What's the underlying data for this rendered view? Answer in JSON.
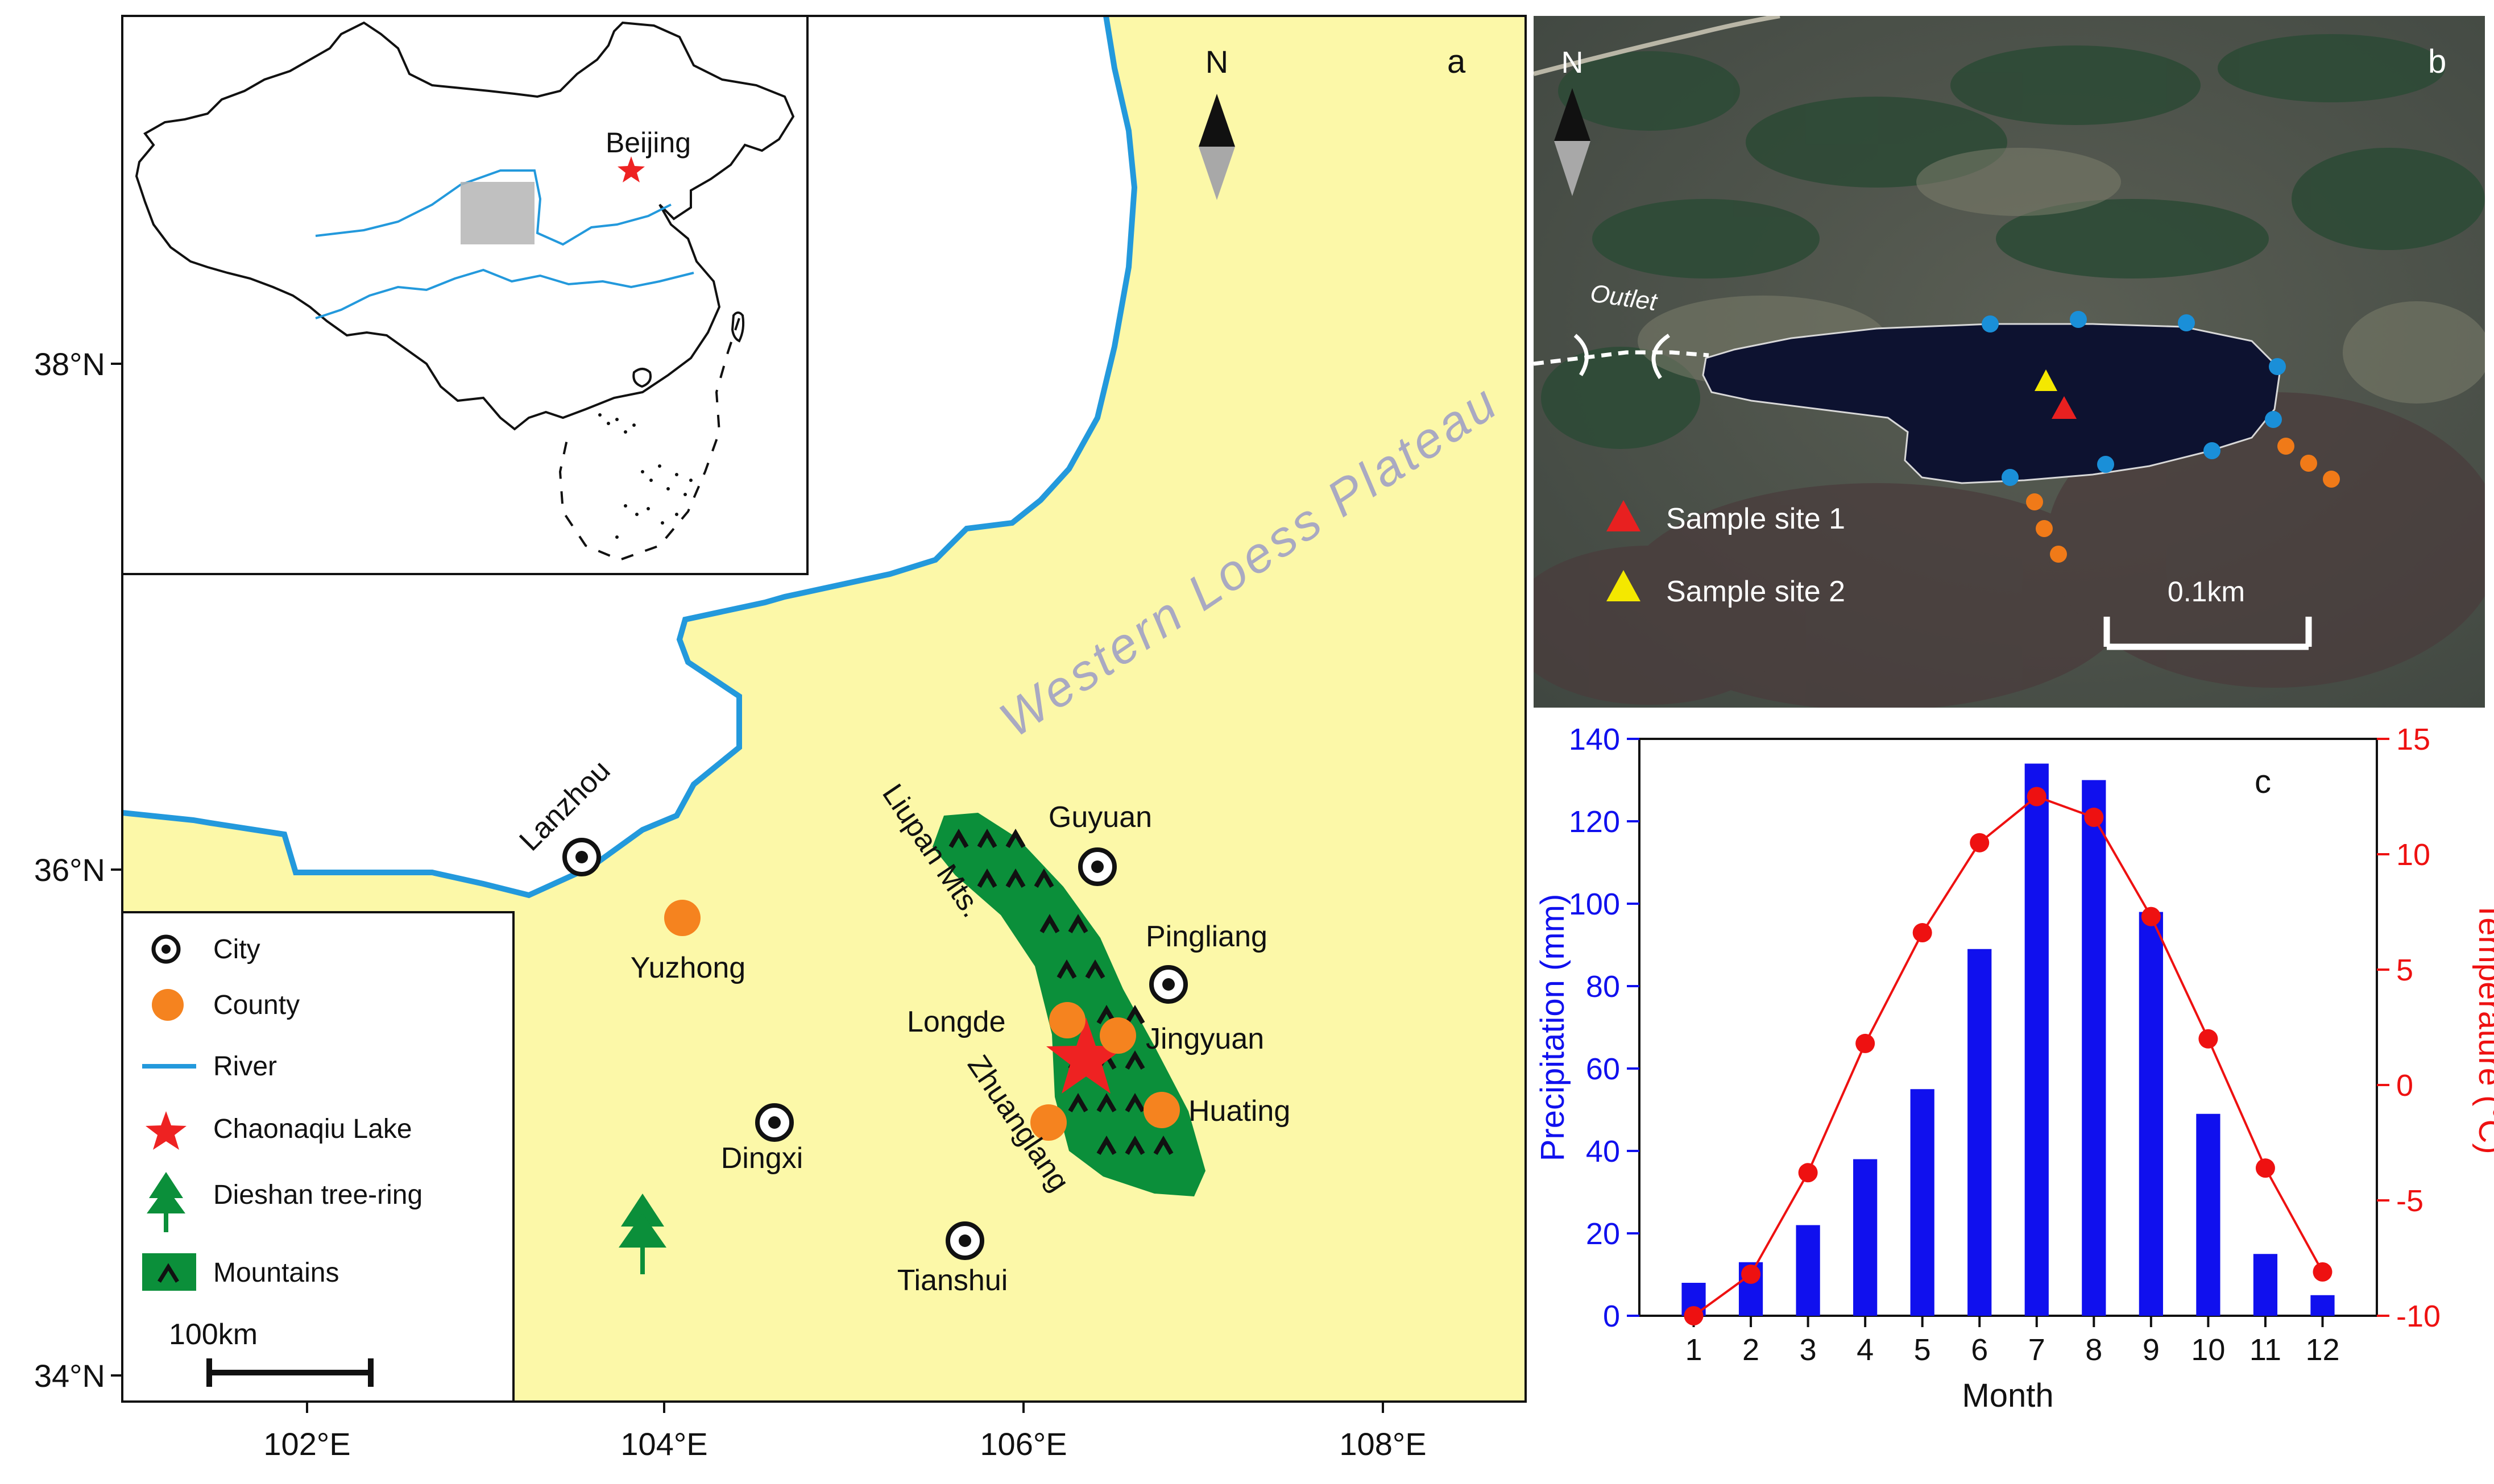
{
  "colors": {
    "plateau": "#fcf8a8",
    "river": "#2399dc",
    "mountains": "#0b8f3a",
    "city_marker": "#111111",
    "county": "#f5831f",
    "lake_star": "#ee2222",
    "precip_bar": "#1010ee",
    "temperature_line": "#ee1111",
    "satellite_bg": "#52564a",
    "lake": "#0d1230",
    "shore_point": "#1a8fd8",
    "stream_point": "#f07a18",
    "site1": "#e82020",
    "site2": "#f4e800"
  },
  "panel_a": {
    "label": "a",
    "north": "N",
    "plateau_label": "Western  Loess  Plateau",
    "lat_ticks": [
      "38°N",
      "36°N",
      "34°N"
    ],
    "lon_ticks": [
      "102°E",
      "104°E",
      "106°E",
      "108°E"
    ],
    "inset_capital": "Beijing",
    "mountains_label": "Liupan Mts.",
    "cities": [
      {
        "name": "Lanzhou",
        "type": "city"
      },
      {
        "name": "Guyuan",
        "type": "city"
      },
      {
        "name": "Pingliang",
        "type": "city"
      },
      {
        "name": "Dingxi",
        "type": "city"
      },
      {
        "name": "Tianshui",
        "type": "city"
      },
      {
        "name": "Yuzhong",
        "type": "county"
      },
      {
        "name": "Longde",
        "type": "county"
      },
      {
        "name": "Jingyuan",
        "type": "county"
      },
      {
        "name": "Huating",
        "type": "county"
      },
      {
        "name": "Zhuanglang",
        "type": "county"
      }
    ],
    "legend": [
      {
        "label": "City",
        "icon": "city-icon"
      },
      {
        "label": "County",
        "icon": "county-dot-icon"
      },
      {
        "label": "River",
        "icon": "river-line-icon"
      },
      {
        "label": "Chaonaqiu Lake",
        "icon": "star-icon"
      },
      {
        "label": "Dieshan tree-ring",
        "icon": "tree-icon"
      },
      {
        "label": "Mountains",
        "icon": "mountain-icon"
      }
    ],
    "scale_label": "100km"
  },
  "panel_b": {
    "label": "b",
    "north": "N",
    "outlet_label": "Outlet",
    "legend": [
      {
        "label": "Sample site 1",
        "icon": "red-triangle-icon"
      },
      {
        "label": "Sample site 2",
        "icon": "yellow-triangle-icon"
      }
    ],
    "scale_label": "0.1km"
  },
  "panel_c": {
    "label": "c",
    "chart_data": {
      "type": "bar",
      "categories": [
        "1",
        "2",
        "3",
        "4",
        "5",
        "6",
        "7",
        "8",
        "9",
        "10",
        "11",
        "12"
      ],
      "series": [
        {
          "type": "bar",
          "axis": "left",
          "values": [
            8,
            13,
            22,
            38,
            55,
            89,
            134,
            130,
            98,
            49,
            15,
            5
          ]
        },
        {
          "type": "line",
          "axis": "right",
          "values": [
            -10,
            -8.2,
            -3.8,
            1.8,
            6.6,
            10.5,
            12.5,
            11.6,
            7.3,
            2.0,
            -3.6,
            -8.1
          ]
        }
      ],
      "xlabel": "Month",
      "ylabel": "Precipitation (mm)",
      "y2label": "Temperature (°C)",
      "ylim": [
        0,
        140
      ],
      "y2lim": [
        -10,
        15
      ],
      "yticks": [
        "0",
        "20",
        "40",
        "60",
        "80",
        "100",
        "120",
        "140"
      ],
      "y2ticks": [
        "-10",
        "-5",
        "0",
        "5",
        "10",
        "15"
      ],
      "grid": false
    }
  }
}
